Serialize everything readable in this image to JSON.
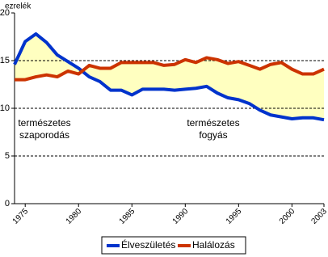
{
  "chart_data": {
    "type": "line",
    "y_label": "ezrelék",
    "annotations": [
      "természetes",
      "szaporodás",
      "természetes",
      "fogyás"
    ],
    "x": [
      1974,
      1975,
      1976,
      1977,
      1978,
      1979,
      1980,
      1981,
      1982,
      1983,
      1984,
      1985,
      1986,
      1987,
      1988,
      1989,
      1990,
      1991,
      1992,
      1993,
      1994,
      1995,
      1996,
      1997,
      1998,
      1999,
      2000,
      2001,
      2002,
      2003
    ],
    "series": [
      {
        "name": "Élveszületés",
        "color": "#0033cc",
        "values": [
          14.6,
          17.0,
          17.8,
          16.9,
          15.6,
          14.9,
          14.2,
          13.3,
          12.8,
          11.9,
          11.9,
          11.4,
          12.0,
          12.0,
          12.0,
          11.9,
          12.0,
          12.1,
          12.3,
          11.6,
          11.1,
          10.9,
          10.5,
          9.8,
          9.3,
          9.1,
          8.9,
          9.0,
          9.0,
          8.8
        ]
      },
      {
        "name": "Halálozás",
        "color": "#cc3300",
        "values": [
          13.0,
          13.0,
          13.3,
          13.5,
          13.3,
          13.9,
          13.6,
          14.5,
          14.2,
          14.2,
          14.8,
          14.8,
          14.8,
          14.8,
          14.5,
          14.6,
          15.1,
          14.8,
          15.3,
          15.1,
          14.7,
          14.9,
          14.5,
          14.1,
          14.6,
          14.8,
          14.1,
          13.6,
          13.6,
          14.1
        ]
      }
    ],
    "fill_color": "#ffffc0",
    "xlim": [
      1974,
      2003
    ],
    "xticks": [
      1975,
      1980,
      1985,
      1990,
      1995,
      2000,
      2003
    ],
    "ylim": [
      0,
      20
    ],
    "yticks": [
      0,
      5,
      10,
      15,
      20
    ],
    "grid": true,
    "legend": "bottom"
  }
}
